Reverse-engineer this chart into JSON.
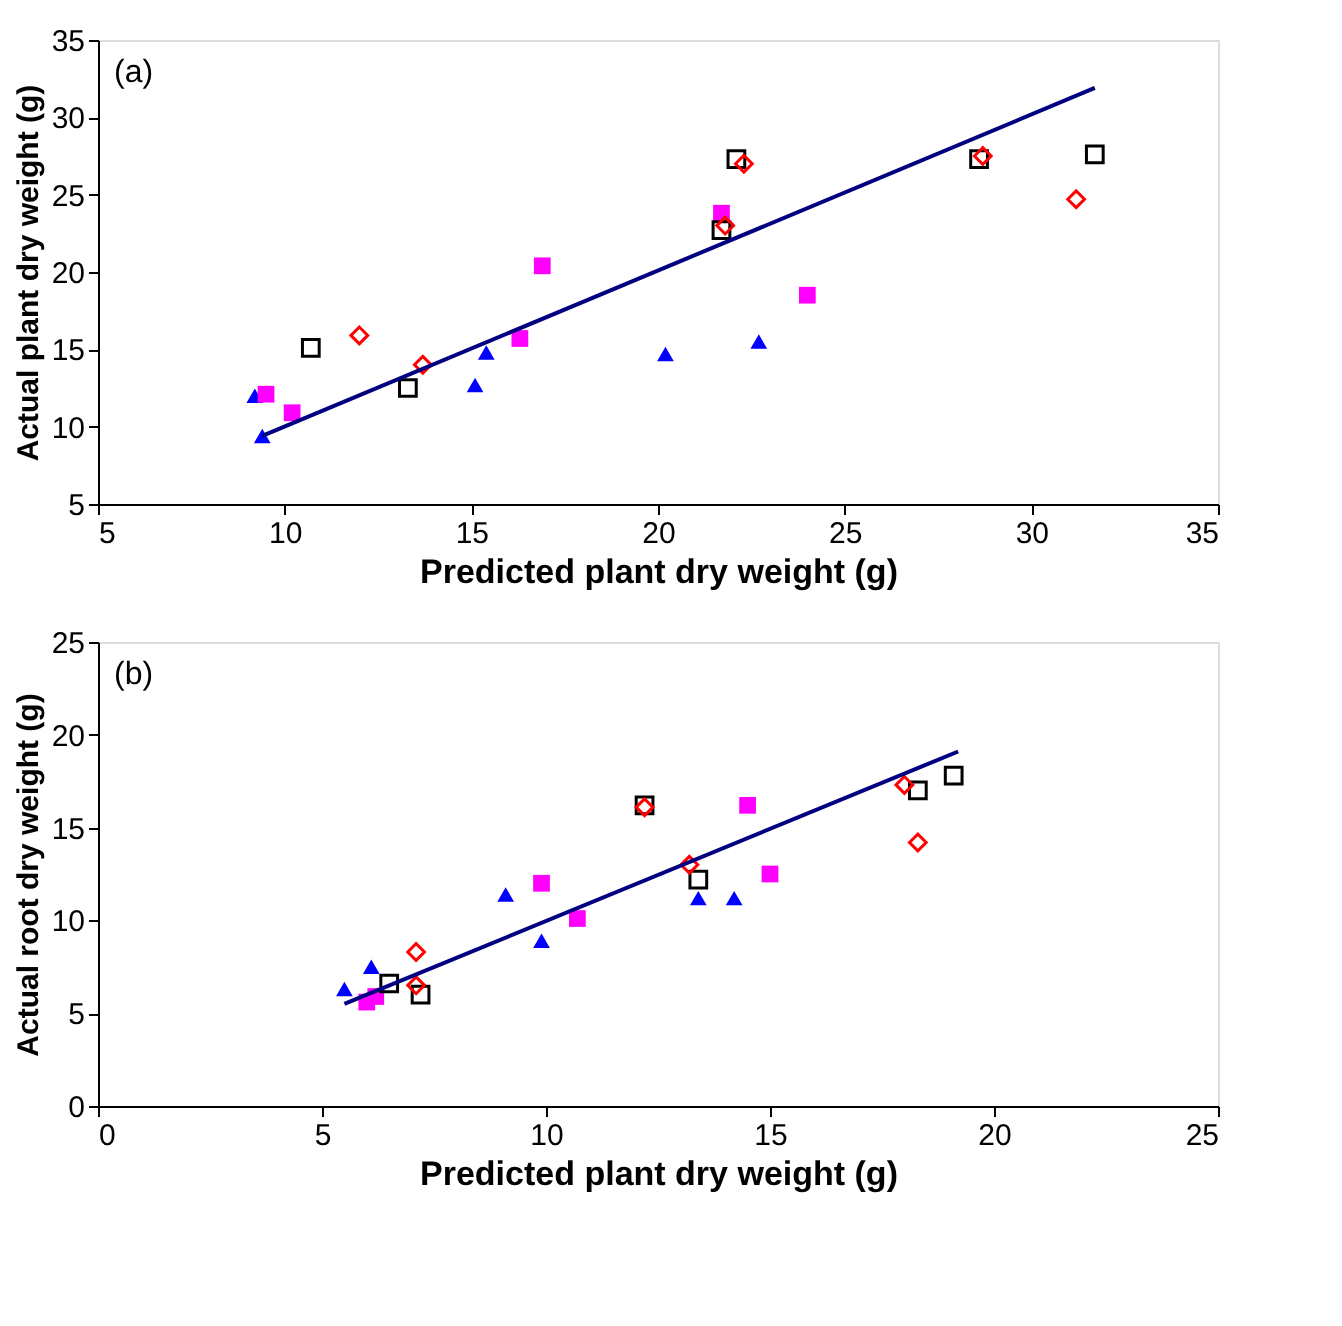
{
  "chart_data": [
    {
      "type": "scatter",
      "xlabel": "Predicted  plant dry weight (g)",
      "ylabel": "Actual plant dry weight (g)",
      "annotations": [
        "(a)"
      ],
      "xlim": [
        5,
        35
      ],
      "ylim": [
        5,
        35
      ],
      "xticks": [
        5,
        10,
        15,
        20,
        25,
        30,
        35
      ],
      "yticks": [
        5,
        10,
        15,
        20,
        25,
        30,
        35
      ],
      "grid": false,
      "legend": false,
      "series": [
        {
          "color": "#0000ff",
          "marker": "triangle",
          "x": [
            9.2,
            9.4,
            15.1,
            15.4,
            20.2,
            22.7
          ],
          "values": [
            12.0,
            9.4,
            12.7,
            14.8,
            14.7,
            15.5
          ]
        },
        {
          "color": "#ff00ff",
          "marker": "square",
          "x": [
            9.5,
            10.2,
            16.3,
            16.9,
            21.7,
            24.0
          ],
          "values": [
            12.1,
            10.9,
            15.7,
            20.4,
            23.8,
            18.5
          ]
        },
        {
          "color": "#000000",
          "marker": "square",
          "x": [
            10.7,
            13.3,
            21.7,
            22.1,
            28.6,
            31.7
          ],
          "values": [
            15.1,
            12.5,
            22.7,
            27.3,
            27.3,
            27.6
          ]
        },
        {
          "color": "#ff0000",
          "marker": "diamond",
          "x": [
            12.0,
            13.7,
            21.8,
            22.3,
            28.7,
            31.2
          ],
          "values": [
            15.9,
            14.0,
            23.0,
            27.0,
            27.5,
            24.7
          ]
        },
        {
          "type": "line",
          "color": "#000080",
          "marker": "none",
          "x": [
            9.4,
            31.7
          ],
          "values": [
            9.4,
            31.9
          ]
        }
      ]
    },
    {
      "type": "scatter",
      "xlabel": "Predicted  plant dry weight (g)",
      "ylabel": "Actual root dry weight (g)",
      "annotations": [
        "(b)"
      ],
      "xlim": [
        0,
        25
      ],
      "ylim": [
        0,
        25
      ],
      "xticks": [
        0,
        5,
        10,
        15,
        20,
        25
      ],
      "yticks": [
        0,
        5,
        10,
        15,
        20,
        25
      ],
      "grid": false,
      "legend": false,
      "series": [
        {
          "color": "#0000ff",
          "marker": "triangle",
          "x": [
            5.5,
            6.1,
            9.1,
            9.9,
            13.4,
            14.2
          ],
          "values": [
            6.3,
            7.5,
            11.4,
            8.9,
            11.2,
            11.2
          ]
        },
        {
          "color": "#ff00ff",
          "marker": "square",
          "x": [
            6.0,
            6.2,
            9.9,
            10.7,
            14.5,
            15.0
          ],
          "values": [
            5.6,
            5.9,
            12.0,
            10.1,
            16.2,
            12.5
          ]
        },
        {
          "color": "#000000",
          "marker": "square",
          "x": [
            6.5,
            7.2,
            12.2,
            13.4,
            18.3,
            19.1
          ],
          "values": [
            6.6,
            6.0,
            16.2,
            12.2,
            17.0,
            17.8
          ]
        },
        {
          "color": "#ff0000",
          "marker": "diamond",
          "x": [
            7.1,
            7.1,
            12.2,
            13.2,
            18.0,
            18.3
          ],
          "values": [
            8.3,
            6.5,
            16.1,
            13.0,
            17.3,
            14.2
          ]
        },
        {
          "type": "line",
          "color": "#000080",
          "marker": "none",
          "x": [
            5.5,
            19.2
          ],
          "values": [
            5.5,
            19.1
          ]
        }
      ]
    }
  ]
}
